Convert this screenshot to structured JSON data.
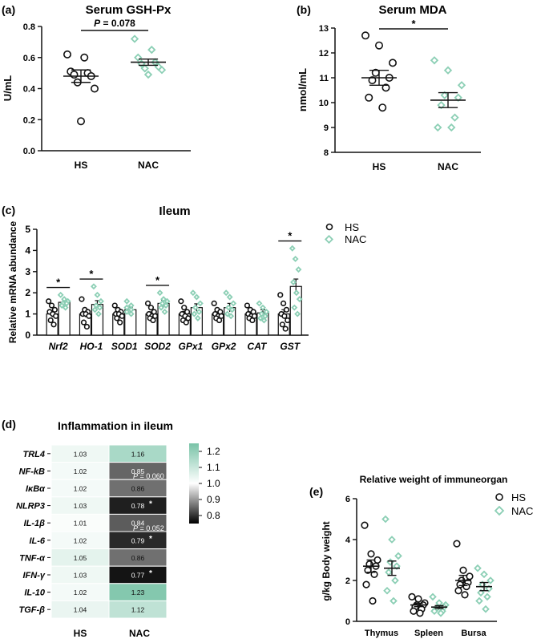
{
  "colors": {
    "hs": "#111111",
    "nac": "#8ccfb5",
    "axis": "#111111",
    "heat_high": "#79c3a7",
    "heat_mid": "#ffffff",
    "heat_low": "#000000"
  },
  "chart_data": [
    {
      "id": "a",
      "panel_label": "(a)",
      "type": "scatter",
      "title": "Serum GSH-Px",
      "ylabel": "U/mL",
      "xlabel": "",
      "categories": [
        "HS",
        "NAC"
      ],
      "ylim": [
        0.0,
        0.8
      ],
      "yticks": [
        "0.0",
        "0.2",
        "0.4",
        "0.6",
        "0.8"
      ],
      "series": [
        {
          "name": "HS",
          "points": [
            0.62,
            0.6,
            0.51,
            0.5,
            0.49,
            0.48,
            0.44,
            0.4,
            0.19
          ],
          "mean": 0.48,
          "sem": 0.04
        },
        {
          "name": "NAC",
          "points": [
            0.72,
            0.65,
            0.6,
            0.57,
            0.56,
            0.54,
            0.53,
            0.52,
            0.49
          ],
          "mean": 0.57,
          "sem": 0.02
        }
      ],
      "annotation": {
        "text": "P = 0.078",
        "p_label": "P",
        "p_rest": " = 0.078"
      }
    },
    {
      "id": "b",
      "panel_label": "(b)",
      "type": "scatter",
      "title": "Serum MDA",
      "ylabel": "nmol/mL",
      "xlabel": "",
      "categories": [
        "HS",
        "NAC"
      ],
      "ylim": [
        8,
        13
      ],
      "yticks": [
        "8",
        "9",
        "10",
        "11",
        "12",
        "13"
      ],
      "series": [
        {
          "name": "HS",
          "points": [
            12.7,
            12.3,
            11.6,
            11.2,
            11.0,
            10.9,
            10.6,
            10.2,
            9.8
          ],
          "mean": 11.0,
          "sem": 0.3
        },
        {
          "name": "NAC",
          "points": [
            11.7,
            11.3,
            10.7,
            10.3,
            10.2,
            9.9,
            9.4,
            9.0,
            9.0
          ],
          "mean": 10.1,
          "sem": 0.3
        }
      ],
      "annotation": {
        "text": "*"
      }
    },
    {
      "id": "c",
      "panel_label": "(c)",
      "type": "bar",
      "title": "Ileum",
      "ylabel": "Relative mRNA abundance",
      "categories": [
        "Nrf2",
        "HO-1",
        "SOD1",
        "SOD2",
        "GPx1",
        "GPx2",
        "CAT",
        "GST"
      ],
      "ylim": [
        0,
        5
      ],
      "yticks": [
        "0",
        "1",
        "2",
        "3",
        "4",
        "5"
      ],
      "legend": [
        "HS",
        "NAC"
      ],
      "series": [
        {
          "name": "HS",
          "values": [
            1.0,
            1.0,
            1.0,
            1.0,
            1.0,
            1.0,
            1.0,
            1.0
          ],
          "sem": [
            0.15,
            0.15,
            0.1,
            0.1,
            0.12,
            0.1,
            0.1,
            0.2
          ],
          "points": [
            [
              1.6,
              1.4,
              1.2,
              1.1,
              1.0,
              0.9,
              0.7,
              0.5
            ],
            [
              1.7,
              1.2,
              1.1,
              1.0,
              1.0,
              0.9,
              0.6,
              0.4
            ],
            [
              1.4,
              1.2,
              1.1,
              1.0,
              1.0,
              0.9,
              0.8,
              0.6
            ],
            [
              1.5,
              1.3,
              1.1,
              1.0,
              0.9,
              0.9,
              0.8,
              0.7
            ],
            [
              1.6,
              1.3,
              1.1,
              1.0,
              0.9,
              0.8,
              0.7,
              0.6
            ],
            [
              1.5,
              1.2,
              1.1,
              1.0,
              0.9,
              0.9,
              0.8,
              0.7
            ],
            [
              1.4,
              1.2,
              1.1,
              1.0,
              0.9,
              0.9,
              0.8,
              0.7
            ],
            [
              1.9,
              1.5,
              1.2,
              1.0,
              0.9,
              0.7,
              0.5,
              0.3
            ]
          ]
        },
        {
          "name": "NAC",
          "values": [
            1.55,
            1.45,
            1.2,
            1.5,
            1.3,
            1.3,
            1.05,
            2.3
          ],
          "sem": [
            0.12,
            0.18,
            0.12,
            0.15,
            0.18,
            0.2,
            0.15,
            0.35
          ],
          "points": [
            [
              1.9,
              1.7,
              1.6,
              1.5,
              1.5,
              1.4,
              1.3
            ],
            [
              2.3,
              1.9,
              1.6,
              1.4,
              1.3,
              1.2,
              1.0
            ],
            [
              1.6,
              1.4,
              1.3,
              1.2,
              1.1,
              1.0
            ],
            [
              2.0,
              1.7,
              1.6,
              1.5,
              1.4,
              1.3,
              1.1
            ],
            [
              2.0,
              1.8,
              1.5,
              1.3,
              1.1,
              1.0,
              0.8
            ],
            [
              2.0,
              1.8,
              1.5,
              1.3,
              1.2,
              1.0,
              0.9
            ],
            [
              1.5,
              1.3,
              1.1,
              1.0,
              0.9,
              0.8,
              0.7
            ],
            [
              4.1,
              3.6,
              3.1,
              2.5,
              2.0,
              1.7,
              1.3,
              1.0
            ]
          ]
        }
      ],
      "significance": [
        "*",
        "*",
        "",
        "*",
        "",
        "",
        "",
        "*"
      ]
    },
    {
      "id": "d",
      "panel_label": "(d)",
      "type": "heatmap",
      "title": "Inflammation in ileum",
      "rows": [
        "TRL4",
        "NF-kB",
        "IκBα",
        "NLRP3",
        "IL-1β",
        "IL-6",
        "TNF-α",
        "IFN-γ",
        "IL-10",
        "TGF-β"
      ],
      "columns": [
        "HS",
        "NAC"
      ],
      "values": [
        [
          1.03,
          1.16
        ],
        [
          1.02,
          0.85
        ],
        [
          1.02,
          0.86
        ],
        [
          1.03,
          0.78
        ],
        [
          1.01,
          0.84
        ],
        [
          1.02,
          0.79
        ],
        [
          1.05,
          0.86
        ],
        [
          1.03,
          0.77
        ],
        [
          1.02,
          1.23
        ],
        [
          1.04,
          1.12
        ]
      ],
      "labels": [
        [
          "1.03",
          "1.16"
        ],
        [
          "1.02",
          "0.85"
        ],
        [
          "1.02",
          "0.86"
        ],
        [
          "1.03",
          "0.78"
        ],
        [
          "1.01",
          "0.84"
        ],
        [
          "1.02",
          "0.79"
        ],
        [
          "1.05",
          "0.86"
        ],
        [
          "1.03",
          "0.77"
        ],
        [
          "1.02",
          "1.23"
        ],
        [
          "1.04",
          "1.12"
        ]
      ],
      "stars": [
        "",
        "",
        "",
        "*",
        "",
        "*",
        "",
        "*",
        "",
        ""
      ],
      "pvalues": [
        "",
        "= 0.060",
        "",
        "",
        "= 0.052",
        "",
        "",
        "",
        "",
        ""
      ],
      "p_label": "P",
      "scale": {
        "min": 0.75,
        "max": 1.25,
        "ticks": [
          "1.2",
          "1.1",
          "1.0",
          "0.9",
          "0.8"
        ],
        "tick_values": [
          1.2,
          1.1,
          1.0,
          0.9,
          0.8
        ]
      }
    },
    {
      "id": "e",
      "panel_label": "(e)",
      "type": "scatter",
      "title": "Relative weight of immuneorgan",
      "ylabel": "g/kg Body weight",
      "categories": [
        "Thymus",
        "Spleen",
        "Bursa"
      ],
      "ylim": [
        0,
        6
      ],
      "yticks": [
        "0",
        "2",
        "4",
        "6"
      ],
      "legend": [
        "HS",
        "NAC"
      ],
      "series": [
        {
          "name": "HS",
          "means": [
            2.7,
            0.8,
            2.0
          ],
          "sems": [
            0.3,
            0.08,
            0.25
          ],
          "points": [
            [
              4.7,
              3.3,
              3.0,
              2.8,
              2.7,
              2.5,
              2.3,
              1.8,
              1.0
            ],
            [
              1.2,
              1.1,
              0.9,
              0.8,
              0.8,
              0.7,
              0.6,
              0.5,
              0.4
            ],
            [
              3.8,
              2.5,
              2.2,
              2.0,
              1.9,
              1.8,
              1.7,
              1.5,
              1.3
            ]
          ]
        },
        {
          "name": "NAC",
          "means": [
            2.6,
            0.7,
            1.7
          ],
          "sems": [
            0.35,
            0.07,
            0.2
          ],
          "points": [
            [
              5.0,
              4.0,
              3.2,
              2.9,
              2.7,
              2.4,
              2.0,
              1.5,
              1.0
            ],
            [
              1.2,
              0.9,
              0.8,
              0.7,
              0.7,
              0.6,
              0.5,
              0.5,
              0.4
            ],
            [
              2.6,
              2.3,
              2.0,
              1.8,
              1.6,
              1.4,
              1.2,
              1.0,
              0.6
            ]
          ]
        }
      ]
    }
  ]
}
